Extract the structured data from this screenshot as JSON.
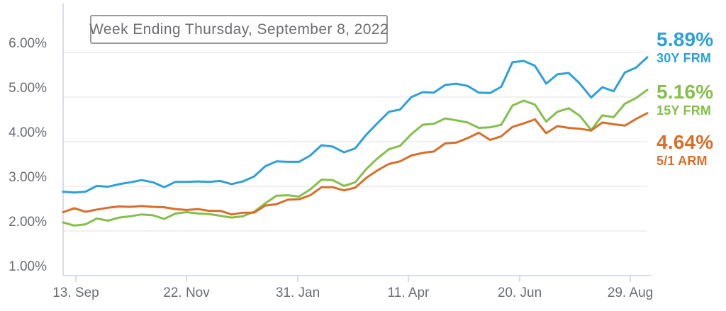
{
  "title_box": {
    "label": "Week Ending Thursday, September 8, 2022"
  },
  "chart_data": {
    "type": "line",
    "title": "Week Ending Thursday, September 8, 2022",
    "x_tick_labels": [
      "13. Sep",
      "22. Nov",
      "31. Jan",
      "11. Apr",
      "20. Jun",
      "29. Aug"
    ],
    "y_tick_labels": [
      "6.00%",
      "5.00%",
      "4.00%",
      "3.00%",
      "2.00%",
      "1.00%"
    ],
    "ylim": [
      1.0,
      6.0
    ],
    "y_unit": "%",
    "grid": true,
    "grid_color": "#e6e6e6",
    "axis_color": "#ccd2de",
    "label_color": "#6a6d71",
    "legend_position": "right-outside",
    "x_frequency": "weekly",
    "series": [
      {
        "name": "30Y FRM",
        "end_value": "5.89%",
        "color": "#2da0d9",
        "values": [
          2.88,
          2.86,
          2.88,
          3.01,
          2.99,
          3.05,
          3.09,
          3.14,
          3.09,
          2.98,
          3.1,
          3.1,
          3.11,
          3.1,
          3.12,
          3.05,
          3.11,
          3.22,
          3.45,
          3.56,
          3.55,
          3.55,
          3.69,
          3.92,
          3.89,
          3.76,
          3.85,
          4.16,
          4.42,
          4.67,
          4.72,
          5.0,
          5.11,
          5.1,
          5.27,
          5.3,
          5.25,
          5.1,
          5.09,
          5.23,
          5.78,
          5.81,
          5.7,
          5.3,
          5.51,
          5.54,
          5.3,
          4.99,
          5.22,
          5.13,
          5.55,
          5.66,
          5.89
        ]
      },
      {
        "name": "15Y FRM",
        "end_value": "5.16%",
        "color": "#84bf4b",
        "values": [
          2.19,
          2.12,
          2.15,
          2.28,
          2.23,
          2.3,
          2.33,
          2.37,
          2.35,
          2.27,
          2.39,
          2.42,
          2.39,
          2.38,
          2.34,
          2.3,
          2.33,
          2.43,
          2.62,
          2.79,
          2.8,
          2.77,
          2.93,
          3.15,
          3.14,
          3.01,
          3.09,
          3.39,
          3.63,
          3.83,
          3.91,
          4.17,
          4.38,
          4.4,
          4.52,
          4.48,
          4.43,
          4.31,
          4.32,
          4.38,
          4.81,
          4.92,
          4.83,
          4.45,
          4.67,
          4.75,
          4.58,
          4.26,
          4.59,
          4.55,
          4.85,
          4.98,
          5.16
        ]
      },
      {
        "name": "5/1 ARM",
        "end_value": "4.64%",
        "color": "#d76f2b",
        "values": [
          2.42,
          2.51,
          2.43,
          2.48,
          2.52,
          2.55,
          2.54,
          2.56,
          2.54,
          2.53,
          2.49,
          2.47,
          2.49,
          2.45,
          2.45,
          2.37,
          2.41,
          2.41,
          2.57,
          2.6,
          2.7,
          2.71,
          2.8,
          2.98,
          2.98,
          2.91,
          2.97,
          3.19,
          3.36,
          3.5,
          3.56,
          3.69,
          3.75,
          3.78,
          3.96,
          3.98,
          4.08,
          4.2,
          4.04,
          4.12,
          4.33,
          4.41,
          4.5,
          4.19,
          4.35,
          4.31,
          4.29,
          4.25,
          4.43,
          4.39,
          4.36,
          4.51,
          4.64
        ]
      }
    ]
  }
}
